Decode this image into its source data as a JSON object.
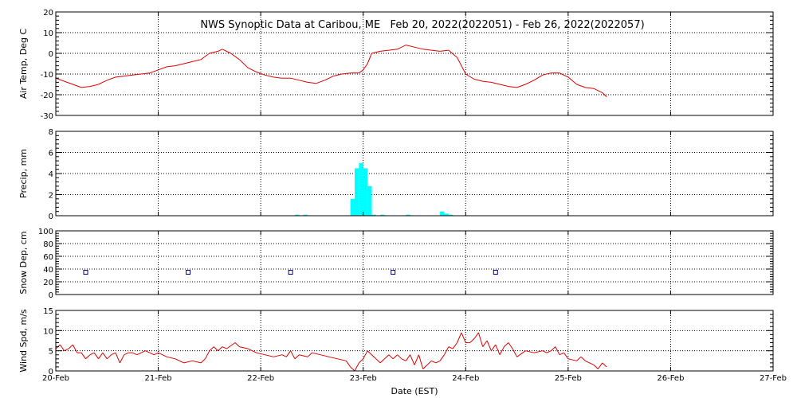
{
  "chart_data": {
    "title": "NWS Synoptic Data at Caribou, ME   Feb 20, 2022(2022051) - Feb 26, 2022(2022057)",
    "xlabel": "Date (EST)",
    "x_axis": {
      "type": "date",
      "range": [
        "2022-02-20",
        "2022-02-27"
      ],
      "tick_labels": [
        "20-Feb",
        "21-Feb",
        "22-Feb",
        "23-Feb",
        "24-Feb",
        "25-Feb",
        "26-Feb",
        "27-Feb"
      ],
      "grid": "dotted"
    },
    "colors": {
      "line": "#dd0000",
      "precip_bars": "#00ffff",
      "snow_markers": "#000080",
      "axes": "#000000"
    },
    "panels": [
      {
        "type": "line",
        "ylabel": "Air Temp, Deg C",
        "ylim": [
          -30,
          20
        ],
        "yticks": [
          20,
          10,
          0,
          -10,
          -20,
          -30
        ],
        "ytick_labels": [
          "20",
          "10",
          "0",
          "-10",
          "-20",
          "-30"
        ],
        "series": [
          {
            "points": [
              [
                "2022-02-20 00:00",
                -12
              ],
              [
                "2022-02-20 02:00",
                -13.5
              ],
              [
                "2022-02-20 04:00",
                -15
              ],
              [
                "2022-02-20 06:00",
                -16.5
              ],
              [
                "2022-02-20 08:00",
                -16
              ],
              [
                "2022-02-20 10:00",
                -15
              ],
              [
                "2022-02-20 12:00",
                -13
              ],
              [
                "2022-02-20 14:00",
                -11.5
              ],
              [
                "2022-02-20 16:00",
                -11
              ],
              [
                "2022-02-20 18:00",
                -10.5
              ],
              [
                "2022-02-20 20:00",
                -10
              ],
              [
                "2022-02-20 22:00",
                -9.5
              ],
              [
                "2022-02-21 00:00",
                -8
              ],
              [
                "2022-02-21 02:00",
                -6.5
              ],
              [
                "2022-02-21 04:00",
                -6
              ],
              [
                "2022-02-21 06:00",
                -5
              ],
              [
                "2022-02-21 08:00",
                -4
              ],
              [
                "2022-02-21 10:00",
                -3
              ],
              [
                "2022-02-21 12:00",
                0
              ],
              [
                "2022-02-21 14:00",
                1
              ],
              [
                "2022-02-21 15:00",
                2
              ],
              [
                "2022-02-21 17:00",
                0
              ],
              [
                "2022-02-21 19:00",
                -3
              ],
              [
                "2022-02-21 21:00",
                -7
              ],
              [
                "2022-02-21 23:00",
                -9
              ],
              [
                "2022-02-22 01:00",
                -10.5
              ],
              [
                "2022-02-22 03:00",
                -11.5
              ],
              [
                "2022-02-22 05:00",
                -12
              ],
              [
                "2022-02-22 07:00",
                -12
              ],
              [
                "2022-02-22 09:00",
                -13
              ],
              [
                "2022-02-22 11:00",
                -14
              ],
              [
                "2022-02-22 13:00",
                -14.5
              ],
              [
                "2022-02-22 15:00",
                -13
              ],
              [
                "2022-02-22 17:00",
                -11
              ],
              [
                "2022-02-22 19:00",
                -10
              ],
              [
                "2022-02-22 21:00",
                -9.5
              ],
              [
                "2022-02-22 23:00",
                -9.5
              ],
              [
                "2022-02-23 00:00",
                -8
              ],
              [
                "2022-02-23 01:00",
                -5
              ],
              [
                "2022-02-23 02:00",
                0
              ],
              [
                "2022-02-23 04:00",
                1
              ],
              [
                "2022-02-23 06:00",
                1.5
              ],
              [
                "2022-02-23 08:00",
                2
              ],
              [
                "2022-02-23 10:00",
                4
              ],
              [
                "2022-02-23 12:00",
                3
              ],
              [
                "2022-02-23 14:00",
                2
              ],
              [
                "2022-02-23 16:00",
                1.5
              ],
              [
                "2022-02-23 18:00",
                1
              ],
              [
                "2022-02-23 20:00",
                1.5
              ],
              [
                "2022-02-23 22:00",
                -2
              ],
              [
                "2022-02-24 00:00",
                -10
              ],
              [
                "2022-02-24 02:00",
                -12.5
              ],
              [
                "2022-02-24 04:00",
                -13.5
              ],
              [
                "2022-02-24 06:00",
                -14
              ],
              [
                "2022-02-24 08:00",
                -15
              ],
              [
                "2022-02-24 10:00",
                -16
              ],
              [
                "2022-02-24 12:00",
                -16.5
              ],
              [
                "2022-02-24 14:00",
                -15
              ],
              [
                "2022-02-24 16:00",
                -13
              ],
              [
                "2022-02-24 18:00",
                -10.5
              ],
              [
                "2022-02-24 20:00",
                -9.5
              ],
              [
                "2022-02-24 22:00",
                -9.5
              ],
              [
                "2022-02-25 00:00",
                -11.5
              ],
              [
                "2022-02-25 02:00",
                -15
              ],
              [
                "2022-02-25 04:00",
                -16.5
              ],
              [
                "2022-02-25 06:00",
                -17
              ],
              [
                "2022-02-25 08:00",
                -19
              ],
              [
                "2022-02-25 09:00",
                -21
              ]
            ]
          }
        ]
      },
      {
        "type": "bar",
        "ylabel": "Precip, mm",
        "ylim": [
          0,
          8
        ],
        "yticks": [
          8,
          6,
          4,
          2,
          0
        ],
        "ytick_labels": [
          "8",
          "6",
          "4",
          "2",
          "0"
        ],
        "bar_width_hours": 1,
        "bars": [
          [
            "2022-02-22 08:00",
            0.1
          ],
          [
            "2022-02-22 10:00",
            0.1
          ],
          [
            "2022-02-22 21:00",
            1.6
          ],
          [
            "2022-02-22 22:00",
            4.5
          ],
          [
            "2022-02-22 23:00",
            5.0
          ],
          [
            "2022-02-23 00:00",
            4.5
          ],
          [
            "2022-02-23 01:00",
            2.8
          ],
          [
            "2022-02-23 02:00",
            0.1
          ],
          [
            "2022-02-23 04:00",
            0.1
          ],
          [
            "2022-02-23 10:00",
            0.1
          ],
          [
            "2022-02-23 18:00",
            0.4
          ],
          [
            "2022-02-23 19:00",
            0.2
          ],
          [
            "2022-02-23 20:00",
            0.1
          ]
        ]
      },
      {
        "type": "scatter",
        "ylabel": "Snow Dep, cm",
        "ylim": [
          0,
          100
        ],
        "yticks": [
          100,
          80,
          60,
          40,
          20,
          0
        ],
        "ytick_labels": [
          "100",
          "80",
          "60",
          "40",
          "20",
          "0"
        ],
        "marker": "open-square",
        "points": [
          [
            "2022-02-20 07:00",
            35
          ],
          [
            "2022-02-21 07:00",
            35
          ],
          [
            "2022-02-22 07:00",
            35
          ],
          [
            "2022-02-23 07:00",
            35
          ],
          [
            "2022-02-24 07:00",
            35
          ]
        ]
      },
      {
        "type": "line",
        "ylabel": "Wind Spd, m/s",
        "ylim": [
          0,
          15
        ],
        "yticks": [
          15,
          10,
          5,
          0
        ],
        "ytick_labels": [
          "15",
          "10",
          "5",
          "0"
        ],
        "series": [
          {
            "points": [
              [
                "2022-02-20 00:00",
                5.5
              ],
              [
                "2022-02-20 01:00",
                6.5
              ],
              [
                "2022-02-20 02:00",
                5
              ],
              [
                "2022-02-20 03:00",
                5.5
              ],
              [
                "2022-02-20 04:00",
                6.5
              ],
              [
                "2022-02-20 05:00",
                4.5
              ],
              [
                "2022-02-20 06:00",
                4.5
              ],
              [
                "2022-02-20 07:00",
                3
              ],
              [
                "2022-02-20 08:00",
                4
              ],
              [
                "2022-02-20 09:00",
                4.5
              ],
              [
                "2022-02-20 10:00",
                3
              ],
              [
                "2022-02-20 11:00",
                4.5
              ],
              [
                "2022-02-20 12:00",
                3
              ],
              [
                "2022-02-20 13:00",
                4
              ],
              [
                "2022-02-20 14:00",
                4.5
              ],
              [
                "2022-02-20 15:00",
                2
              ],
              [
                "2022-02-20 16:00",
                4
              ],
              [
                "2022-02-20 17:00",
                4.5
              ],
              [
                "2022-02-20 18:00",
                4.5
              ],
              [
                "2022-02-20 19:00",
                4
              ],
              [
                "2022-02-20 20:00",
                4.5
              ],
              [
                "2022-02-20 21:00",
                5
              ],
              [
                "2022-02-20 22:00",
                4.5
              ],
              [
                "2022-02-20 23:00",
                4
              ],
              [
                "2022-02-21 00:00",
                4.5
              ],
              [
                "2022-02-21 02:00",
                3.5
              ],
              [
                "2022-02-21 04:00",
                3
              ],
              [
                "2022-02-21 06:00",
                2
              ],
              [
                "2022-02-21 08:00",
                2.5
              ],
              [
                "2022-02-21 10:00",
                2
              ],
              [
                "2022-02-21 11:00",
                3
              ],
              [
                "2022-02-21 12:00",
                5
              ],
              [
                "2022-02-21 13:00",
                6
              ],
              [
                "2022-02-21 14:00",
                5
              ],
              [
                "2022-02-21 15:00",
                6
              ],
              [
                "2022-02-21 16:00",
                5.5
              ],
              [
                "2022-02-21 18:00",
                7
              ],
              [
                "2022-02-21 19:00",
                6
              ],
              [
                "2022-02-21 21:00",
                5.5
              ],
              [
                "2022-02-21 23:00",
                4.5
              ],
              [
                "2022-02-22 01:00",
                4
              ],
              [
                "2022-02-22 03:00",
                3.5
              ],
              [
                "2022-02-22 05:00",
                4
              ],
              [
                "2022-02-22 06:00",
                3.5
              ],
              [
                "2022-02-22 07:00",
                5
              ],
              [
                "2022-02-22 08:00",
                3
              ],
              [
                "2022-02-22 09:00",
                4
              ],
              [
                "2022-02-22 11:00",
                3.5
              ],
              [
                "2022-02-22 12:00",
                4.5
              ],
              [
                "2022-02-22 14:00",
                4
              ],
              [
                "2022-02-22 16:00",
                3.5
              ],
              [
                "2022-02-22 18:00",
                3
              ],
              [
                "2022-02-22 20:00",
                2.5
              ],
              [
                "2022-02-22 21:00",
                1
              ],
              [
                "2022-02-22 22:00",
                0
              ],
              [
                "2022-02-22 23:00",
                2
              ],
              [
                "2022-02-23 00:00",
                3
              ],
              [
                "2022-02-23 01:00",
                5
              ],
              [
                "2022-02-23 02:00",
                4
              ],
              [
                "2022-02-23 03:00",
                3
              ],
              [
                "2022-02-23 04:00",
                2
              ],
              [
                "2022-02-23 05:00",
                3
              ],
              [
                "2022-02-23 06:00",
                4
              ],
              [
                "2022-02-23 07:00",
                3
              ],
              [
                "2022-02-23 08:00",
                4
              ],
              [
                "2022-02-23 09:00",
                3
              ],
              [
                "2022-02-23 10:00",
                2.5
              ],
              [
                "2022-02-23 11:00",
                4
              ],
              [
                "2022-02-23 12:00",
                1.5
              ],
              [
                "2022-02-23 13:00",
                4
              ],
              [
                "2022-02-23 14:00",
                0.5
              ],
              [
                "2022-02-23 15:00",
                1.5
              ],
              [
                "2022-02-23 16:00",
                2.5
              ],
              [
                "2022-02-23 17:00",
                2
              ],
              [
                "2022-02-23 18:00",
                2.5
              ],
              [
                "2022-02-23 19:00",
                4
              ],
              [
                "2022-02-23 20:00",
                6
              ],
              [
                "2022-02-23 21:00",
                5.5
              ],
              [
                "2022-02-23 22:00",
                7
              ],
              [
                "2022-02-23 23:00",
                9.5
              ],
              [
                "2022-02-24 00:00",
                7
              ],
              [
                "2022-02-24 01:00",
                7
              ],
              [
                "2022-02-24 02:00",
                8
              ],
              [
                "2022-02-24 03:00",
                9.5
              ],
              [
                "2022-02-24 04:00",
                6
              ],
              [
                "2022-02-24 05:00",
                7.5
              ],
              [
                "2022-02-24 06:00",
                5
              ],
              [
                "2022-02-24 07:00",
                6.5
              ],
              [
                "2022-02-24 08:00",
                4
              ],
              [
                "2022-02-24 09:00",
                6
              ],
              [
                "2022-02-24 10:00",
                7
              ],
              [
                "2022-02-24 11:00",
                5.5
              ],
              [
                "2022-02-24 12:00",
                3.5
              ],
              [
                "2022-02-24 14:00",
                5
              ],
              [
                "2022-02-24 16:00",
                4.5
              ],
              [
                "2022-02-24 18:00",
                5
              ],
              [
                "2022-02-24 19:00",
                4.5
              ],
              [
                "2022-02-24 20:00",
                5
              ],
              [
                "2022-02-24 21:00",
                6
              ],
              [
                "2022-02-24 22:00",
                4
              ],
              [
                "2022-02-24 23:00",
                4.5
              ],
              [
                "2022-02-25 00:00",
                3
              ],
              [
                "2022-02-25 02:00",
                2.5
              ],
              [
                "2022-02-25 03:00",
                3.5
              ],
              [
                "2022-02-25 04:00",
                2.5
              ],
              [
                "2022-02-25 06:00",
                1.5
              ],
              [
                "2022-02-25 07:00",
                0.5
              ],
              [
                "2022-02-25 08:00",
                2
              ],
              [
                "2022-02-25 09:00",
                1
              ]
            ]
          }
        ]
      }
    ]
  }
}
